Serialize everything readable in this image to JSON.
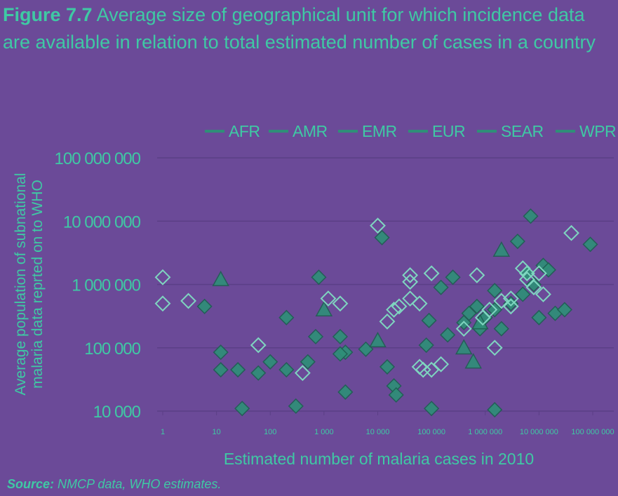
{
  "figure": {
    "label": "Figure 7.7",
    "text": "Average size of geographical unit for which incidence data are available in relation to total estimated number of cases in a country"
  },
  "source": {
    "label": "Source:",
    "text": "NMCP data, WHO estimates."
  },
  "colors": {
    "background": "#6b4a98",
    "text": "#3fc9a4",
    "marker": "#2f8f78",
    "marker_stroke": "#1f5f52",
    "open_marker": "#7fd6c0",
    "grid": "#5b3f86"
  },
  "chart_data": {
    "type": "scatter",
    "xscale": "log",
    "yscale": "log",
    "xlim": [
      1,
      100000000
    ],
    "ylim": [
      10000,
      100000000
    ],
    "xlabel": "Estimated number of malaria cases in 2010",
    "ylabel": "Average population of subnational malaria data reprted on to WHO",
    "xticks": [
      "1",
      "10",
      "100",
      "1 000",
      "10 000",
      "100 000",
      "1 000 000",
      "10 000 000",
      "100 000 000"
    ],
    "yticks": [
      "10 000",
      "100 000",
      "1 000 000",
      "10 000 000",
      "100 000 000"
    ],
    "grid": true,
    "legend_position": "top",
    "legend": [
      "AFR",
      "AMR",
      "EMR",
      "EUR",
      "SEAR",
      "WPR"
    ],
    "series": [
      {
        "name": "AFR",
        "marker": "diamond",
        "points": [
          [
            800,
            1300000
          ],
          [
            200,
            300000
          ],
          [
            6,
            450000
          ],
          [
            700,
            150000
          ],
          [
            2000,
            150000
          ],
          [
            2500,
            85000
          ],
          [
            6000,
            95000
          ],
          [
            12000,
            5500000
          ],
          [
            90000,
            270000
          ],
          [
            80000,
            110000
          ],
          [
            150000,
            900000
          ],
          [
            200000,
            160000
          ],
          [
            250000,
            1300000
          ],
          [
            400000,
            250000
          ],
          [
            500000,
            350000
          ],
          [
            700000,
            450000
          ],
          [
            800000,
            200000
          ],
          [
            1000000,
            300000
          ],
          [
            1500000,
            800000
          ],
          [
            1500000,
            400000
          ],
          [
            2000000,
            200000
          ],
          [
            3000000,
            500000
          ],
          [
            4000000,
            4800000
          ],
          [
            5000000,
            700000
          ],
          [
            6000000,
            1500000
          ],
          [
            7000000,
            12000000
          ],
          [
            8000000,
            1000000
          ],
          [
            10000000,
            300000
          ],
          [
            12000000,
            2000000
          ],
          [
            15000000,
            1700000
          ],
          [
            20000000,
            350000
          ],
          [
            30000000,
            400000
          ],
          [
            90000000,
            4300000
          ]
        ]
      },
      {
        "name": "AMR",
        "marker": "diamond",
        "points": [
          [
            12,
            85000
          ],
          [
            12,
            45000
          ],
          [
            25,
            45000
          ],
          [
            60,
            40000
          ],
          [
            100,
            60000
          ],
          [
            200,
            45000
          ],
          [
            300,
            12000
          ],
          [
            30,
            11000
          ],
          [
            500,
            60000
          ],
          [
            2000,
            80000
          ],
          [
            2500,
            20000
          ],
          [
            15000,
            50000
          ],
          [
            20000,
            25000
          ],
          [
            22000,
            18000
          ],
          [
            100000,
            11000
          ],
          [
            1500000,
            10500
          ]
        ]
      },
      {
        "name": "EMR",
        "marker": "triangle",
        "points": [
          [
            1000,
            400000
          ],
          [
            10000,
            130000
          ],
          [
            400000,
            100000
          ],
          [
            600000,
            60000
          ],
          [
            800000,
            250000
          ],
          [
            2000000,
            3500000
          ],
          [
            12,
            1200000
          ]
        ]
      },
      {
        "name": "EUR",
        "marker": "diamond-open",
        "points": [
          [
            1,
            1300000
          ],
          [
            1,
            500000
          ],
          [
            3,
            550000
          ],
          [
            60,
            110000
          ],
          [
            400,
            40000
          ],
          [
            1200,
            600000
          ],
          [
            2000,
            500000
          ],
          [
            10000,
            8500000
          ],
          [
            15000,
            260000
          ],
          [
            20000,
            400000
          ],
          [
            25000,
            450000
          ],
          [
            40000,
            1400000
          ],
          [
            40000,
            1100000
          ],
          [
            60000,
            500000
          ],
          [
            60000,
            50000
          ],
          [
            70000,
            45000
          ],
          [
            100000,
            1500000
          ],
          [
            100000,
            45000
          ],
          [
            150000,
            55000
          ],
          [
            700000,
            1400000
          ],
          [
            1500000,
            100000
          ],
          [
            3000000,
            450000
          ],
          [
            6000000,
            1500000
          ],
          [
            40000000,
            6500000
          ]
        ]
      },
      {
        "name": "SEAR",
        "marker": "diamond-open",
        "points": [
          [
            900000,
            300000
          ],
          [
            2000000,
            550000
          ],
          [
            5000000,
            1800000
          ],
          [
            6000000,
            1200000
          ],
          [
            8000000,
            900000
          ],
          [
            12000000,
            700000
          ]
        ]
      },
      {
        "name": "WPR",
        "marker": "diamond-open",
        "points": [
          [
            40000,
            600000
          ],
          [
            400000,
            200000
          ],
          [
            1200000,
            400000
          ],
          [
            3000000,
            600000
          ],
          [
            10000000,
            1500000
          ]
        ]
      }
    ]
  }
}
